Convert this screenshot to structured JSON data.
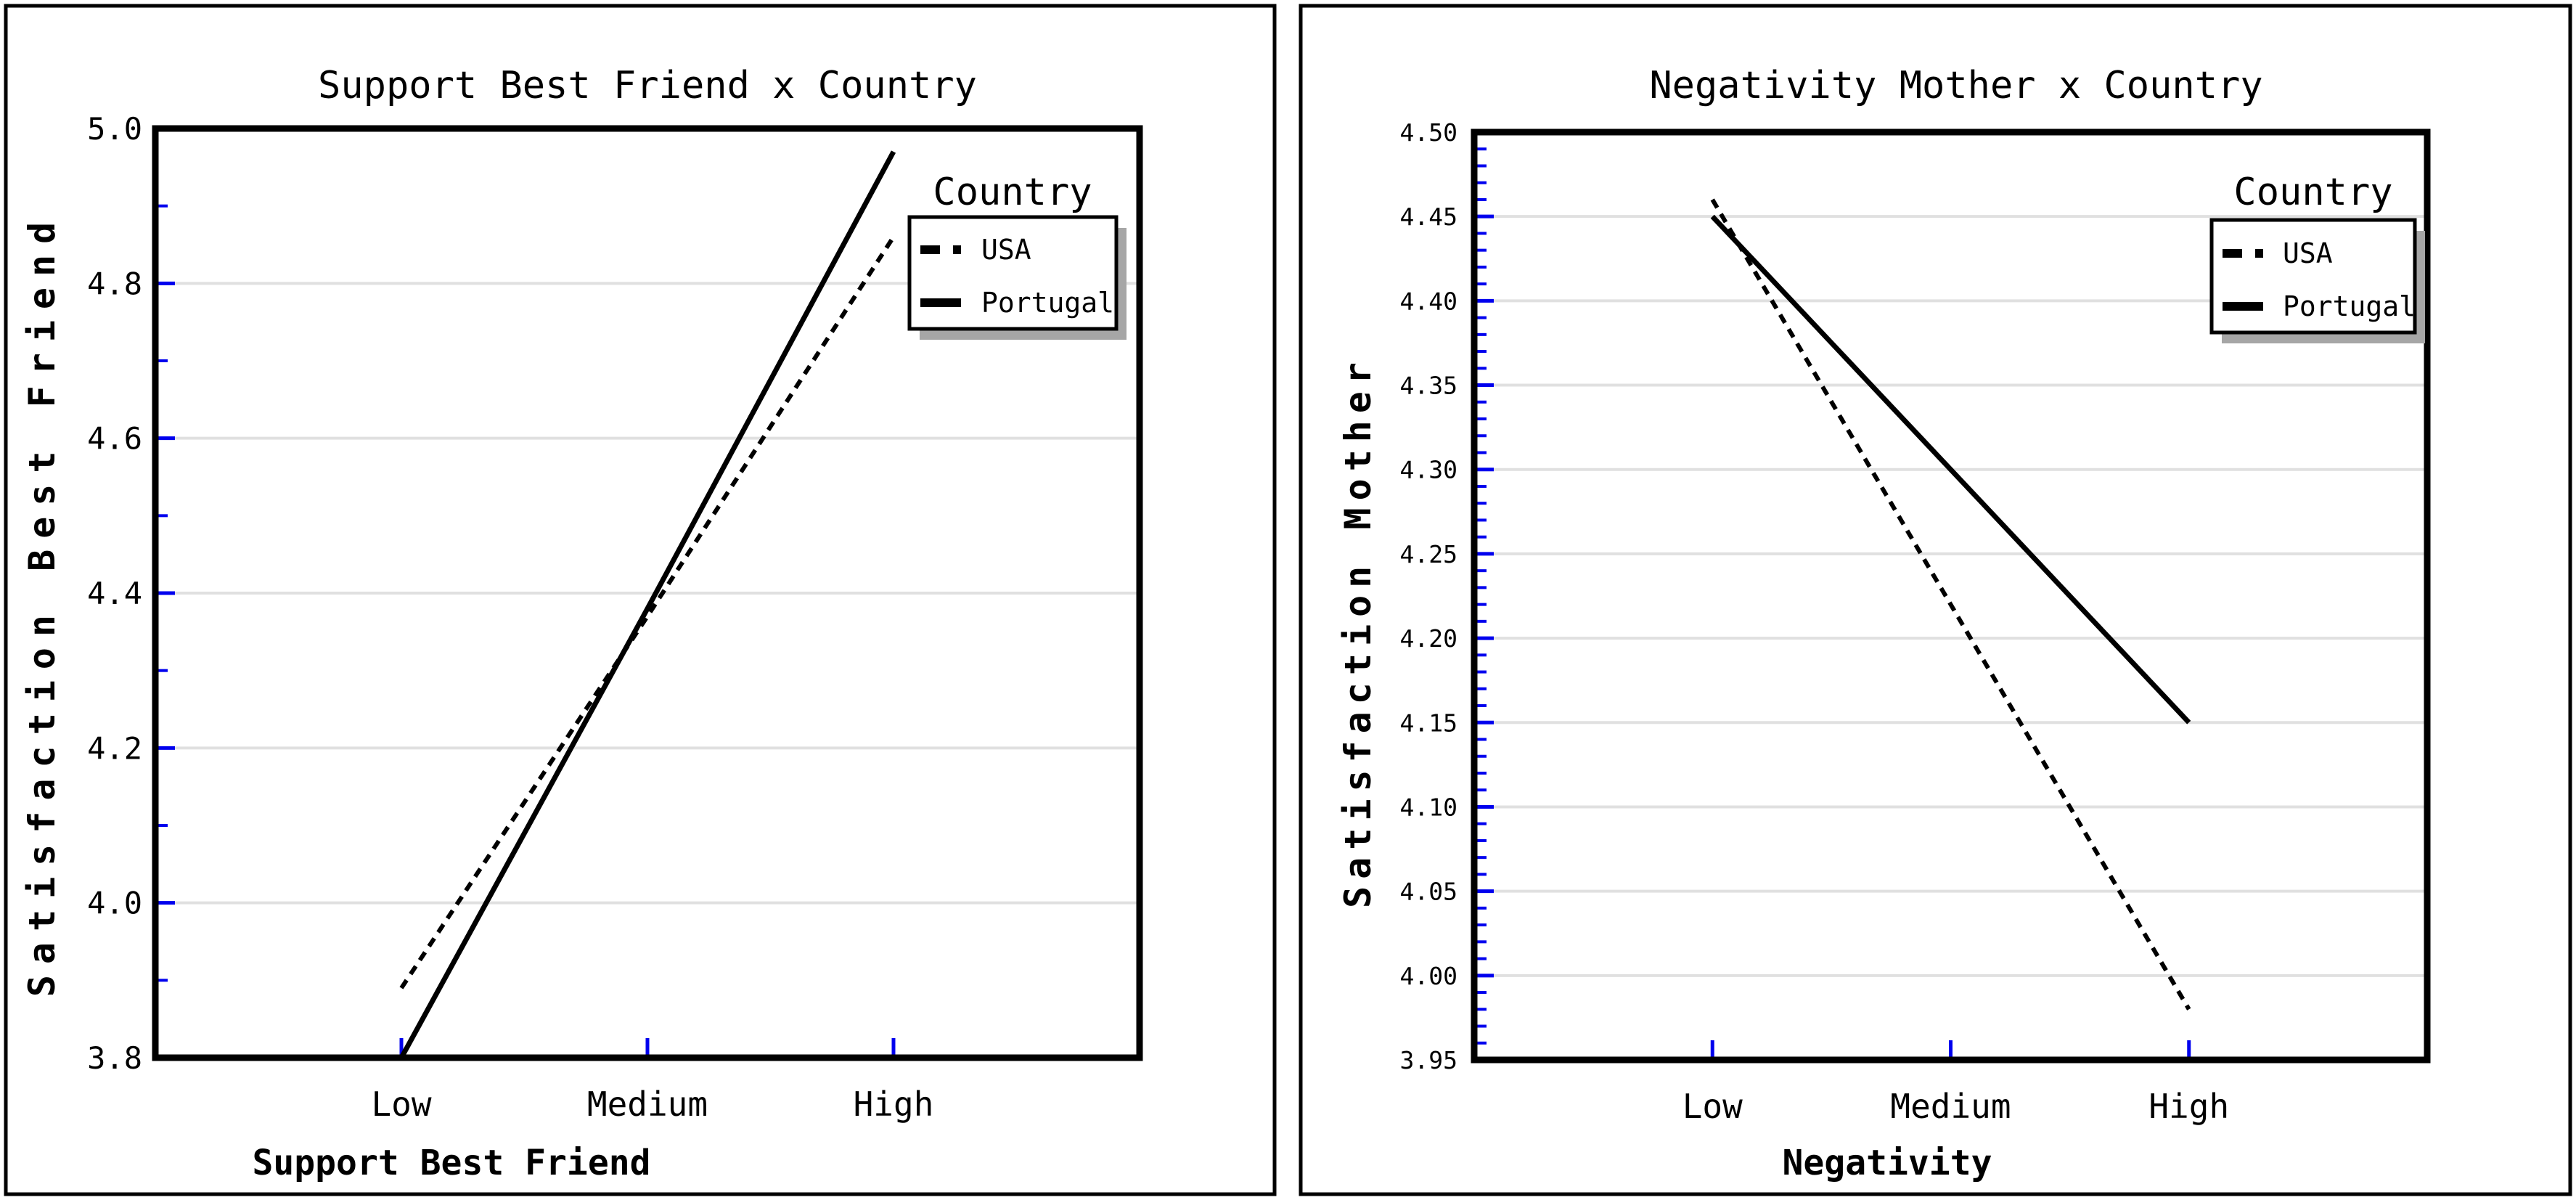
{
  "page": {
    "background": "#FFFFFF",
    "description": "Two interaction line plots side by side"
  },
  "colors": {
    "line": "#000000",
    "tick": "#0000EE",
    "grid": "#E0E0E0",
    "legend_shadow": "#A6A6A6",
    "text": "#000000"
  },
  "chart_data": [
    {
      "type": "line",
      "title": "Support Best Friend x Country",
      "xlabel": "Support Best Friend",
      "ylabel": "Satisfaction Best Friend",
      "categories": [
        "Low",
        "Medium",
        "High"
      ],
      "series": [
        {
          "name": "USA",
          "line_style": "dashed",
          "values": [
            3.89,
            4.37,
            4.86
          ]
        },
        {
          "name": "Portugal",
          "line_style": "solid",
          "values": [
            3.8,
            4.38,
            4.97
          ]
        }
      ],
      "ylim": [
        3.8,
        5.0
      ],
      "y_major_ticks": [
        3.8,
        4.0,
        4.2,
        4.4,
        4.6,
        4.8,
        5.0
      ],
      "y_tick_labels": [
        "3.8",
        "4.0",
        "4.2",
        "4.4",
        "4.6",
        "4.8",
        "5.0"
      ],
      "y_minor_step": 0.1,
      "grid": "horizontal-majors",
      "legend_title": "Country",
      "legend_position": "top-right"
    },
    {
      "type": "line",
      "title": "Negativity Mother x Country",
      "xlabel": "Negativity",
      "ylabel": "Satisfaction Mother",
      "categories": [
        "Low",
        "Medium",
        "High"
      ],
      "series": [
        {
          "name": "USA",
          "line_style": "dashed",
          "values": [
            4.46,
            4.22,
            3.98
          ]
        },
        {
          "name": "Portugal",
          "line_style": "solid",
          "values": [
            4.45,
            4.3,
            4.15
          ]
        }
      ],
      "ylim": [
        3.95,
        4.5
      ],
      "y_major_ticks": [
        3.95,
        4.0,
        4.05,
        4.1,
        4.15,
        4.2,
        4.25,
        4.3,
        4.35,
        4.4,
        4.45,
        4.5
      ],
      "y_tick_labels": [
        "3.95",
        "4.00",
        "4.05",
        "4.10",
        "4.15",
        "4.20",
        "4.25",
        "4.30",
        "4.35",
        "4.40",
        "4.45",
        "4.50"
      ],
      "y_minor_step": 0.01,
      "grid": "horizontal-majors",
      "legend_title": "Country",
      "legend_position": "top-right"
    }
  ]
}
